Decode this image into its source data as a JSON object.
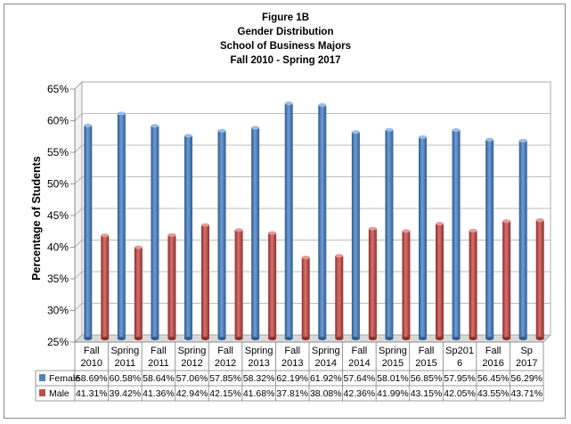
{
  "chart_data": {
    "type": "bar",
    "title_lines": [
      "Figure 1B",
      "Gender Distribution",
      "School of Business Majors",
      "Fall 2010 - Spring 2017"
    ],
    "ylabel": "Percentage of Students",
    "xlabel": "",
    "ylim": [
      25,
      65
    ],
    "y_ticks": [
      "25%",
      "30%",
      "35%",
      "40%",
      "45%",
      "50%",
      "55%",
      "60%",
      "65%"
    ],
    "grid": true,
    "legend": "data-table-left",
    "categories": [
      [
        "Fall",
        "2010"
      ],
      [
        "Spring",
        "2011"
      ],
      [
        "Fall",
        "2011"
      ],
      [
        "Spring",
        "2012"
      ],
      [
        "Fall",
        "2012"
      ],
      [
        "Spring",
        "2013"
      ],
      [
        "Fall",
        "2013"
      ],
      [
        "Spring",
        "2014"
      ],
      [
        "Fall",
        "2014"
      ],
      [
        "Spring",
        "2015"
      ],
      [
        "Fall",
        "2015"
      ],
      [
        "Sp201",
        "6"
      ],
      [
        "Fall",
        "2016"
      ],
      [
        "Sp",
        "2017"
      ]
    ],
    "series": [
      {
        "name": "Female",
        "color": "#4f81bd",
        "values": [
          58.69,
          60.58,
          58.64,
          57.06,
          57.85,
          58.32,
          62.19,
          61.92,
          57.64,
          58.01,
          56.85,
          57.95,
          56.45,
          56.29
        ],
        "labels": [
          "58.69%",
          "60.58%",
          "58.64%",
          "57.06%",
          "57.85%",
          "58.32%",
          "62.19%",
          "61.92%",
          "57.64%",
          "58.01%",
          "56.85%",
          "57.95%",
          "56.45%",
          "56.29%"
        ]
      },
      {
        "name": "Male",
        "color": "#c0504d",
        "values": [
          41.31,
          39.42,
          41.36,
          42.94,
          42.15,
          41.68,
          37.81,
          38.08,
          42.36,
          41.99,
          43.15,
          42.05,
          43.55,
          43.71
        ],
        "labels": [
          "41.31%",
          "39.42%",
          "41.36%",
          "42.94%",
          "42.15%",
          "41.68%",
          "37.81%",
          "38.08%",
          "42.36%",
          "41.99%",
          "43.15%",
          "42.05%",
          "43.55%",
          "43.71%"
        ]
      }
    ]
  }
}
